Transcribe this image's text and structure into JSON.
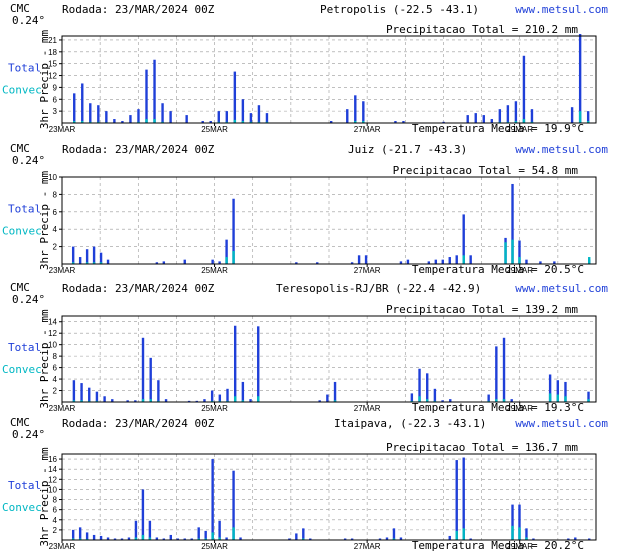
{
  "panels": [
    {
      "model": "CMC",
      "resolution": "0.24°",
      "run": "Rodada: 23/MAR/2024 00Z",
      "location": "Petropolis (-22.5 -43.1)",
      "site": "www.metsul.com",
      "total_label": "Total",
      "convec_label": "Convec",
      "precip_total": "Precipitacao Total = 210.2 mm",
      "temp_mean": "Temperatura Media = 19.9°C",
      "chart_data": {
        "type": "bar",
        "ylabel": "3hr Precip - mm",
        "ylim": [
          0,
          22
        ],
        "yticks": [
          3,
          6,
          9,
          12,
          15,
          18,
          21
        ],
        "xlim": [
          0,
          56
        ],
        "xticks": [
          {
            "label": "23MAR",
            "x": 0
          },
          {
            "label": "25MAR",
            "x": 16
          },
          {
            "label": "27MAR",
            "x": 32
          },
          {
            "label": "29MAR",
            "x": 48
          }
        ],
        "total": [
          0,
          7.5,
          10,
          5,
          4.5,
          3,
          1,
          0.5,
          2,
          3.5,
          13.5,
          16,
          5,
          3,
          0,
          2,
          0,
          0.5,
          0.5,
          3,
          3,
          13,
          6,
          2.5,
          4.5,
          2.5,
          0,
          0,
          0,
          0,
          0,
          0,
          0,
          0.5,
          0,
          3.5,
          7,
          5.5,
          0,
          0,
          0,
          0.5,
          0.5,
          0,
          0,
          0,
          0,
          0.3,
          0,
          0,
          2,
          2.5,
          2,
          1,
          3.5,
          4.5,
          5.5,
          17,
          3.5,
          0,
          0,
          0,
          0,
          4,
          22.5,
          3
        ],
        "convec": [
          0,
          0.5,
          0.5,
          0.3,
          0.3,
          0.2,
          0,
          0,
          0,
          0.3,
          1,
          1,
          0.3,
          0,
          0,
          0,
          0,
          0,
          0,
          0.3,
          0.3,
          0.8,
          0.5,
          0.3,
          0.3,
          0.3,
          0,
          0,
          0,
          0,
          0,
          0,
          0,
          0,
          0,
          0,
          0.5,
          0.5,
          0,
          0,
          0,
          0,
          0,
          0,
          0,
          0,
          0,
          0,
          0,
          0,
          0,
          0,
          0,
          0,
          0.3,
          0.3,
          0.5,
          1,
          0.3,
          0,
          0,
          0,
          0,
          0,
          3,
          0.5
        ]
      }
    },
    {
      "model": "CMC",
      "resolution": "0.24°",
      "run": "Rodada: 23/MAR/2024 00Z",
      "location": "Juiz (-21.7 -43.3)",
      "site": "www.metsul.com",
      "total_label": "Total",
      "convec_label": "Convec",
      "precip_total": "Precipitacao Total = 54.8 mm",
      "temp_mean": "Temperatura Media = 20.5°C",
      "chart_data": {
        "type": "bar",
        "ylabel": "3hr Precip - mm",
        "ylim": [
          0,
          10
        ],
        "yticks": [
          2,
          4,
          6,
          8,
          10
        ],
        "xlim": [
          0,
          56
        ],
        "xticks": [
          {
            "label": "23MAR",
            "x": 0
          },
          {
            "label": "25MAR",
            "x": 16
          },
          {
            "label": "27MAR",
            "x": 32
          },
          {
            "label": "29MAR",
            "x": 48
          }
        ],
        "total": [
          0,
          2,
          0.8,
          1.7,
          2,
          1.3,
          0.5,
          0,
          0,
          0,
          0,
          0,
          0,
          0.2,
          0.3,
          0,
          0,
          0.5,
          0,
          0,
          0,
          0.5,
          0.3,
          2.8,
          7.5,
          0,
          0,
          0,
          0,
          0,
          0,
          0,
          0,
          0.2,
          0,
          0,
          0.2,
          0,
          0,
          0,
          0,
          0.2,
          1,
          1,
          0,
          0,
          0,
          0,
          0.3,
          0.5,
          0,
          0,
          0.3,
          0.5,
          0.5,
          0.8,
          1,
          5.7,
          1,
          0,
          0,
          0,
          0,
          3,
          9.2,
          2.7,
          0.5,
          0,
          0.3,
          0,
          0.3,
          0,
          0,
          0,
          0,
          0.5
        ],
        "convec": [
          0,
          0.2,
          0,
          0.2,
          0.2,
          0.2,
          0,
          0,
          0,
          0,
          0,
          0,
          0,
          0,
          0,
          0,
          0,
          0,
          0,
          0,
          0,
          0,
          0,
          0.8,
          1.5,
          0,
          0,
          0,
          0,
          0,
          0,
          0,
          0,
          0,
          0,
          0,
          0,
          0,
          0,
          0,
          0,
          0,
          0,
          0,
          0,
          0,
          0,
          0,
          0,
          0,
          0,
          0,
          0,
          0,
          0,
          0,
          0,
          1,
          0,
          0,
          0,
          0,
          0,
          2.5,
          2.8,
          0.8,
          0,
          0,
          0,
          0,
          0,
          0,
          0,
          0,
          0,
          0.8
        ]
      }
    },
    {
      "model": "CMC",
      "resolution": "0.24°",
      "run": "Rodada: 23/MAR/2024 00Z",
      "location": "Teresopolis-RJ/BR (-22.4 -42.9)",
      "site": "www.metsul.com",
      "total_label": "Total",
      "convec_label": "Convec",
      "precip_total": "Precipitacao Total = 139.2 mm",
      "temp_mean": "Temperatura Media = 19.3°C",
      "chart_data": {
        "type": "bar",
        "ylabel": "3hr Precip - mm",
        "ylim": [
          0,
          15
        ],
        "yticks": [
          2,
          4,
          6,
          8,
          10,
          12,
          14
        ],
        "xlim": [
          0,
          56
        ],
        "xticks": [
          {
            "label": "23MAR",
            "x": 0
          },
          {
            "label": "25MAR",
            "x": 16
          },
          {
            "label": "27MAR",
            "x": 32
          },
          {
            "label": "29MAR",
            "x": 48
          }
        ],
        "total": [
          0,
          3.8,
          3.3,
          2.5,
          1.8,
          1,
          0.5,
          0,
          0.3,
          0.3,
          11.2,
          7.7,
          3.8,
          0.5,
          0,
          0,
          0.2,
          0.2,
          0.5,
          2,
          1.3,
          2.3,
          13.3,
          3.5,
          0.5,
          13.2,
          0,
          0,
          0,
          0,
          0,
          0,
          0,
          0.3,
          1.3,
          3.5,
          0,
          0,
          0,
          0,
          0,
          0,
          0,
          0,
          0,
          1.5,
          5.8,
          5,
          2.3,
          0.3,
          0.5,
          0,
          0,
          0,
          0,
          1.3,
          9.7,
          11.2,
          0.5,
          0,
          0,
          0,
          0,
          4.8,
          3.8,
          3.5,
          0,
          0,
          1.8
        ],
        "convec": [
          0,
          0.3,
          0.3,
          0.2,
          0.2,
          0,
          0,
          0,
          0,
          0,
          0.5,
          0.5,
          0.2,
          0,
          0,
          0,
          0,
          0,
          0,
          0.2,
          0.2,
          0.2,
          1,
          0.3,
          0,
          1,
          0,
          0,
          0,
          0,
          0,
          0,
          0,
          0,
          0,
          0.3,
          0,
          0,
          0,
          0,
          0,
          0,
          0,
          0,
          0,
          0.2,
          1,
          0.5,
          0.2,
          0,
          0,
          0,
          0,
          0,
          0,
          0.2,
          0.5,
          0.5,
          0,
          0,
          0,
          0,
          0,
          1.5,
          1.3,
          1,
          0,
          0,
          0.5
        ]
      }
    },
    {
      "model": "CMC",
      "resolution": "0.24°",
      "run": "Rodada: 23/MAR/2024 00Z",
      "location": "Itaipava, (-22.3 -43.1)",
      "site": "www.metsul.com",
      "total_label": "Total",
      "convec_label": "Convec",
      "precip_total": "Precipitacao Total = 136.7 mm",
      "temp_mean": "Temperatura Media = 20.2°C",
      "chart_data": {
        "type": "bar",
        "ylabel": "3hr Precip - mm",
        "ylim": [
          0,
          17
        ],
        "yticks": [
          2,
          4,
          6,
          8,
          10,
          12,
          14,
          16
        ],
        "xlim": [
          0,
          56
        ],
        "xticks": [
          {
            "label": "23MAR",
            "x": 0
          },
          {
            "label": "25MAR",
            "x": 16
          },
          {
            "label": "27MAR",
            "x": 32
          },
          {
            "label": "29MAR",
            "x": 48
          }
        ],
        "total": [
          0,
          2,
          2.5,
          1.5,
          1,
          0.8,
          0.5,
          0.3,
          0.3,
          0.5,
          3.8,
          10,
          3.8,
          0.5,
          0.3,
          1,
          0.3,
          0.3,
          0.3,
          2.5,
          1.8,
          16,
          3.8,
          0.5,
          13.7,
          0.5,
          0,
          0,
          0,
          0,
          0,
          0,
          0.3,
          1.3,
          2.3,
          0.3,
          0,
          0,
          0,
          0,
          0.3,
          0.3,
          0,
          0,
          0,
          0.3,
          0.5,
          2.3,
          0.5,
          0,
          0,
          0,
          0,
          0,
          0,
          0.8,
          15.8,
          16.3,
          0.3,
          0,
          0,
          0,
          0,
          0,
          7,
          7,
          2.3,
          0.3,
          0,
          0,
          0,
          0,
          0.3,
          0.5,
          0,
          0.3
        ],
        "convec": [
          0,
          0.3,
          0.3,
          0.2,
          0,
          0,
          0,
          0,
          0,
          0,
          0.5,
          1,
          0.5,
          0,
          0,
          0,
          0,
          0,
          0,
          0.3,
          0.3,
          1.5,
          0.5,
          0,
          2.5,
          0,
          0,
          0,
          0,
          0,
          0,
          0,
          0,
          0,
          0.3,
          0,
          0,
          0,
          0,
          0,
          0,
          0,
          0,
          0,
          0,
          0,
          0,
          0.3,
          0,
          0,
          0,
          0,
          0,
          0,
          0,
          0,
          1.8,
          2.3,
          0,
          0,
          0,
          0,
          0,
          0,
          2.8,
          2.5,
          0.5,
          0,
          0,
          0,
          0,
          0,
          0,
          0,
          0,
          0
        ]
      }
    }
  ]
}
